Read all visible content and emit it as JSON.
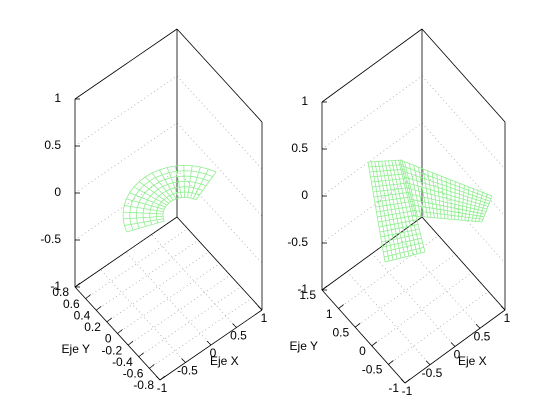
{
  "chart_data": [
    {
      "type": "surface",
      "xlabel": "Eje X",
      "ylabel": "Eje Y",
      "xlim": [
        -1,
        1
      ],
      "ylim": [
        -0.8,
        0.8
      ],
      "zlim": [
        -1,
        1
      ],
      "xticks": [
        -1,
        -0.5,
        0,
        0.5,
        1
      ],
      "yticks": [
        -0.8,
        -0.6,
        -0.4,
        -0.2,
        0,
        0.2,
        0.4,
        0.6,
        0.8
      ],
      "zticks": [
        -1,
        -0.5,
        0,
        0.5,
        1
      ],
      "color": "#90ee90",
      "grid": true
    },
    {
      "type": "surface",
      "xlabel": "Eje X",
      "ylabel": "Eje Y",
      "xlim": [
        -1,
        1
      ],
      "ylim": [
        -1,
        1.5
      ],
      "zlim": [
        -1,
        1
      ],
      "xticks": [
        -1,
        -0.5,
        0,
        0.5,
        1
      ],
      "yticks": [
        -1,
        -0.5,
        0,
        0.5,
        1,
        1.5
      ],
      "zticks": [
        -1,
        -0.5,
        0,
        0.5,
        1
      ],
      "color": "#90ee90",
      "grid": true
    }
  ]
}
